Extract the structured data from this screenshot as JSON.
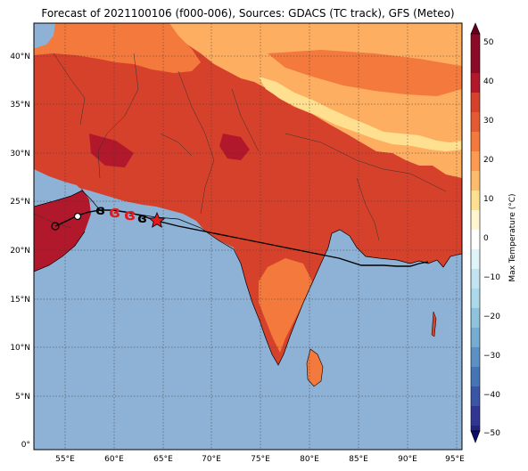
{
  "title": "Forecast of 2021100106 (f000-006), Sources: GDACS (TC track), GFS (Meteo)",
  "map": {
    "lat_ticks": [
      "40°N",
      "35°N",
      "30°N",
      "25°N",
      "20°N",
      "15°N",
      "10°N",
      "5°N",
      "0°"
    ],
    "lon_ticks": [
      "55°E",
      "60°E",
      "65°E",
      "70°E",
      "75°E",
      "80°E",
      "85°E",
      "90°E",
      "95°E"
    ],
    "sea_color": "#8eb1d6",
    "gridlines": true
  },
  "colorbar": {
    "label": "Max Temperature (°C)",
    "ticks": [
      "50",
      "40",
      "30",
      "20",
      "10",
      "0",
      "−10",
      "−20",
      "−30",
      "−40",
      "−50"
    ],
    "colors": [
      "#67001f",
      "#b2182b",
      "#d6412b",
      "#f4793d",
      "#fdae61",
      "#fee090",
      "#ffffff",
      "#e0f3f8",
      "#abd9e9",
      "#74add1",
      "#4575b4",
      "#313695",
      "#1a1a7a"
    ]
  },
  "track": {
    "storm_symbol_color": "#e31a1c",
    "current_position_marker": "star"
  }
}
